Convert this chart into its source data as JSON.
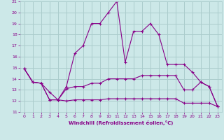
{
  "xlabel": "Windchill (Refroidissement éolien,°C)",
  "bg_color": "#cce8e8",
  "grid_color": "#aacccc",
  "line_color": "#880088",
  "spine_color": "#7700aa",
  "xlim": [
    -0.5,
    23.5
  ],
  "ylim": [
    11,
    21
  ],
  "xticks": [
    0,
    1,
    2,
    3,
    4,
    5,
    6,
    7,
    8,
    9,
    10,
    11,
    12,
    13,
    14,
    15,
    16,
    17,
    18,
    19,
    20,
    21,
    22,
    23
  ],
  "yticks": [
    11,
    12,
    13,
    14,
    15,
    16,
    17,
    18,
    19,
    20,
    21
  ],
  "series": [
    {
      "x": [
        0,
        1,
        2,
        3,
        4,
        5,
        6,
        7,
        8,
        9,
        10,
        11,
        12,
        13,
        14,
        15,
        16,
        17,
        18,
        19,
        20,
        21,
        22,
        23
      ],
      "y": [
        14.9,
        13.7,
        13.6,
        12.1,
        12.1,
        13.3,
        16.3,
        17.0,
        19.0,
        19.0,
        20.0,
        21.0,
        15.5,
        18.3,
        18.3,
        19.0,
        18.0,
        15.3,
        15.3,
        15.3,
        14.6,
        13.7,
        13.3,
        11.5
      ]
    },
    {
      "x": [
        0,
        1,
        2,
        3,
        4,
        5,
        6,
        7,
        8,
        9,
        10,
        11,
        12,
        13,
        14,
        15,
        16,
        17,
        18,
        19,
        20,
        21,
        22,
        23
      ],
      "y": [
        14.9,
        13.7,
        13.6,
        12.8,
        12.1,
        13.1,
        13.3,
        13.3,
        13.6,
        13.6,
        14.0,
        14.0,
        14.0,
        14.0,
        14.3,
        14.3,
        14.3,
        14.3,
        14.3,
        13.0,
        13.0,
        13.7,
        13.3,
        11.5
      ]
    },
    {
      "x": [
        0,
        1,
        2,
        3,
        4,
        5,
        6,
        7,
        8,
        9,
        10,
        11,
        12,
        13,
        14,
        15,
        16,
        17,
        18,
        19,
        20,
        21,
        22,
        23
      ],
      "y": [
        14.9,
        13.7,
        13.6,
        12.1,
        12.1,
        12.0,
        12.1,
        12.1,
        12.1,
        12.1,
        12.2,
        12.2,
        12.2,
        12.2,
        12.2,
        12.2,
        12.2,
        12.2,
        12.2,
        11.8,
        11.8,
        11.8,
        11.8,
        11.5
      ]
    }
  ]
}
